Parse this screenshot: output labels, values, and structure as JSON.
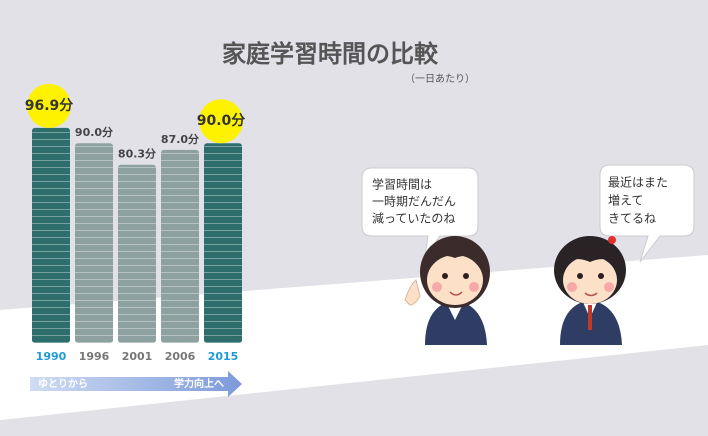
{
  "chart_data": {
    "type": "bar",
    "title": "家庭学習時間の比較",
    "subtitle": "（一日あたり）",
    "categories": [
      "1990",
      "1996",
      "2001",
      "2006",
      "2015"
    ],
    "values": [
      96.9,
      90.0,
      80.3,
      87.0,
      90.0
    ],
    "value_labels": [
      "96.9分",
      "90.0分",
      "80.3分",
      "87.0分",
      "90.0分"
    ],
    "colors": [
      "#2d6e6c",
      "#8da1a0",
      "#8da1a0",
      "#8da1a0",
      "#2d6e6c"
    ],
    "highlight": [
      true,
      false,
      false,
      false,
      true
    ],
    "ylim": [
      0,
      100
    ]
  },
  "arrow": {
    "left": "ゆとりから",
    "right": "学力向上へ"
  },
  "bubbles": [
    {
      "lines": [
        "学習時間は",
        "一時期だんだん",
        "減っていたのね"
      ]
    },
    {
      "lines": [
        "最近はまた",
        "増えて",
        "きてるね"
      ]
    }
  ]
}
